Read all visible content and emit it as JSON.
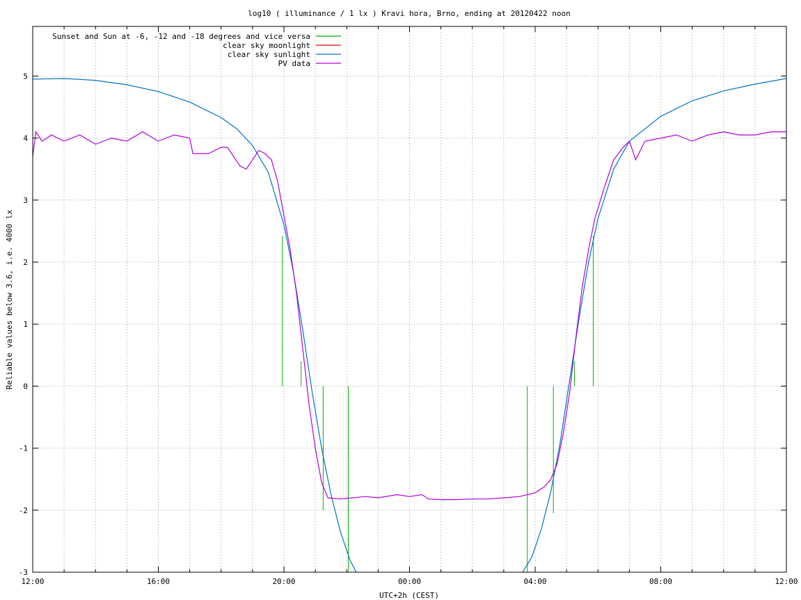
{
  "chart_data": {
    "type": "line",
    "title": "log10 ( illuminance / 1 lx ) Kravi hora, Brno, ending at 20120422 noon",
    "xlabel": "UTC+2h (CEST)",
    "ylabel": "Reliable values below 3.6, i.e. 4000 lx",
    "xlim": [
      12,
      36
    ],
    "ylim": [
      -3,
      5.8
    ],
    "x_unit": "hours of day (wraps at 24)",
    "x_ticks": [
      12,
      16,
      20,
      24,
      28,
      32,
      36
    ],
    "x_tick_labels": [
      "12:00",
      "16:00",
      "20:00",
      "00:00",
      "04:00",
      "08:00",
      "12:00"
    ],
    "x_minor_ticks": [
      13,
      14,
      15,
      17,
      18,
      19,
      21,
      22,
      23,
      25,
      26,
      27,
      29,
      30,
      31,
      33,
      34,
      35
    ],
    "y_ticks": [
      -3,
      -2,
      -1,
      0,
      1,
      2,
      3,
      4,
      5
    ],
    "y_tick_labels": [
      "-3",
      "-2",
      "-1",
      "0",
      "1",
      "2",
      "3",
      "4",
      "5"
    ],
    "grid": true,
    "legend_position": "top-left",
    "series": [
      {
        "name": "Sunset and Sun at -6, -12 and -18 degrees and vice versa",
        "color": "#00b000",
        "style": "impulses",
        "segments": [
          {
            "x": 19.95,
            "y": [
              0,
              2.42
            ]
          },
          {
            "x": 20.55,
            "y": [
              0,
              0.4
            ]
          },
          {
            "x": 21.25,
            "y": [
              -2.0,
              0
            ]
          },
          {
            "x": 22.05,
            "y": [
              -3,
              0
            ]
          },
          {
            "x": 27.75,
            "y": [
              -3,
              0
            ]
          },
          {
            "x": 28.58,
            "y": [
              -2.05,
              0
            ]
          },
          {
            "x": 29.25,
            "y": [
              0,
              0.4
            ]
          },
          {
            "x": 29.85,
            "y": [
              0,
              2.42
            ]
          }
        ]
      },
      {
        "name": "clear sky moonlight",
        "color": "#e00000",
        "style": "line",
        "points": []
      },
      {
        "name": "clear sky sunlight",
        "color": "#0072bd",
        "style": "line",
        "points": [
          [
            12.0,
            4.95
          ],
          [
            13.0,
            4.96
          ],
          [
            14.0,
            4.93
          ],
          [
            15.0,
            4.86
          ],
          [
            16.0,
            4.75
          ],
          [
            17.0,
            4.58
          ],
          [
            18.0,
            4.33
          ],
          [
            18.5,
            4.15
          ],
          [
            19.0,
            3.88
          ],
          [
            19.5,
            3.45
          ],
          [
            20.0,
            2.6
          ],
          [
            20.3,
            1.85
          ],
          [
            20.6,
            0.9
          ],
          [
            20.9,
            -0.1
          ],
          [
            21.2,
            -1.0
          ],
          [
            21.5,
            -1.75
          ],
          [
            21.8,
            -2.35
          ],
          [
            22.1,
            -2.8
          ],
          [
            22.3,
            -3.0
          ]
        ],
        "points_morning": [
          [
            27.6,
            -3.0
          ],
          [
            27.9,
            -2.75
          ],
          [
            28.2,
            -2.3
          ],
          [
            28.5,
            -1.7
          ],
          [
            28.8,
            -0.9
          ],
          [
            29.1,
            0.1
          ],
          [
            29.4,
            1.1
          ],
          [
            29.7,
            2.0
          ],
          [
            30.0,
            2.7
          ],
          [
            30.5,
            3.5
          ],
          [
            31.0,
            3.95
          ],
          [
            32.0,
            4.35
          ],
          [
            33.0,
            4.6
          ],
          [
            34.0,
            4.76
          ],
          [
            35.0,
            4.87
          ],
          [
            36.0,
            4.96
          ]
        ]
      },
      {
        "name": "PV data",
        "color": "#b000e0",
        "style": "line",
        "points": [
          [
            12.0,
            3.7
          ],
          [
            12.1,
            4.1
          ],
          [
            12.3,
            3.95
          ],
          [
            12.6,
            4.05
          ],
          [
            13.0,
            3.95
          ],
          [
            13.5,
            4.05
          ],
          [
            14.0,
            3.9
          ],
          [
            14.5,
            4.0
          ],
          [
            15.0,
            3.95
          ],
          [
            15.5,
            4.1
          ],
          [
            16.0,
            3.95
          ],
          [
            16.5,
            4.05
          ],
          [
            17.0,
            4.0
          ],
          [
            17.1,
            3.75
          ],
          [
            17.6,
            3.75
          ],
          [
            18.0,
            3.85
          ],
          [
            18.2,
            3.85
          ],
          [
            18.4,
            3.7
          ],
          [
            18.6,
            3.55
          ],
          [
            18.8,
            3.5
          ],
          [
            19.0,
            3.65
          ],
          [
            19.2,
            3.8
          ],
          [
            19.4,
            3.75
          ],
          [
            19.6,
            3.65
          ],
          [
            19.8,
            3.3
          ],
          [
            20.0,
            2.75
          ],
          [
            20.2,
            2.2
          ],
          [
            20.4,
            1.5
          ],
          [
            20.6,
            0.6
          ],
          [
            20.8,
            -0.3
          ],
          [
            21.0,
            -1.0
          ],
          [
            21.2,
            -1.55
          ],
          [
            21.4,
            -1.8
          ],
          [
            21.8,
            -1.82
          ],
          [
            22.2,
            -1.8
          ],
          [
            22.6,
            -1.78
          ],
          [
            23.0,
            -1.8
          ],
          [
            23.6,
            -1.75
          ],
          [
            24.0,
            -1.78
          ],
          [
            24.4,
            -1.75
          ],
          [
            24.6,
            -1.82
          ],
          [
            25.0,
            -1.83
          ],
          [
            25.5,
            -1.83
          ],
          [
            26.0,
            -1.82
          ],
          [
            26.5,
            -1.82
          ],
          [
            27.0,
            -1.8
          ],
          [
            27.5,
            -1.78
          ],
          [
            28.0,
            -1.72
          ],
          [
            28.3,
            -1.62
          ],
          [
            28.5,
            -1.5
          ],
          [
            28.7,
            -1.25
          ],
          [
            28.9,
            -0.75
          ],
          [
            29.1,
            -0.1
          ],
          [
            29.3,
            0.8
          ],
          [
            29.5,
            1.6
          ],
          [
            29.7,
            2.2
          ],
          [
            29.9,
            2.7
          ],
          [
            30.2,
            3.2
          ],
          [
            30.5,
            3.65
          ],
          [
            30.8,
            3.85
          ],
          [
            31.0,
            3.95
          ],
          [
            31.2,
            3.65
          ],
          [
            31.5,
            3.95
          ],
          [
            32.0,
            4.0
          ],
          [
            32.5,
            4.05
          ],
          [
            33.0,
            3.95
          ],
          [
            33.5,
            4.05
          ],
          [
            34.0,
            4.1
          ],
          [
            34.5,
            4.05
          ],
          [
            35.0,
            4.05
          ],
          [
            35.5,
            4.1
          ],
          [
            36.0,
            4.1
          ]
        ]
      }
    ]
  }
}
